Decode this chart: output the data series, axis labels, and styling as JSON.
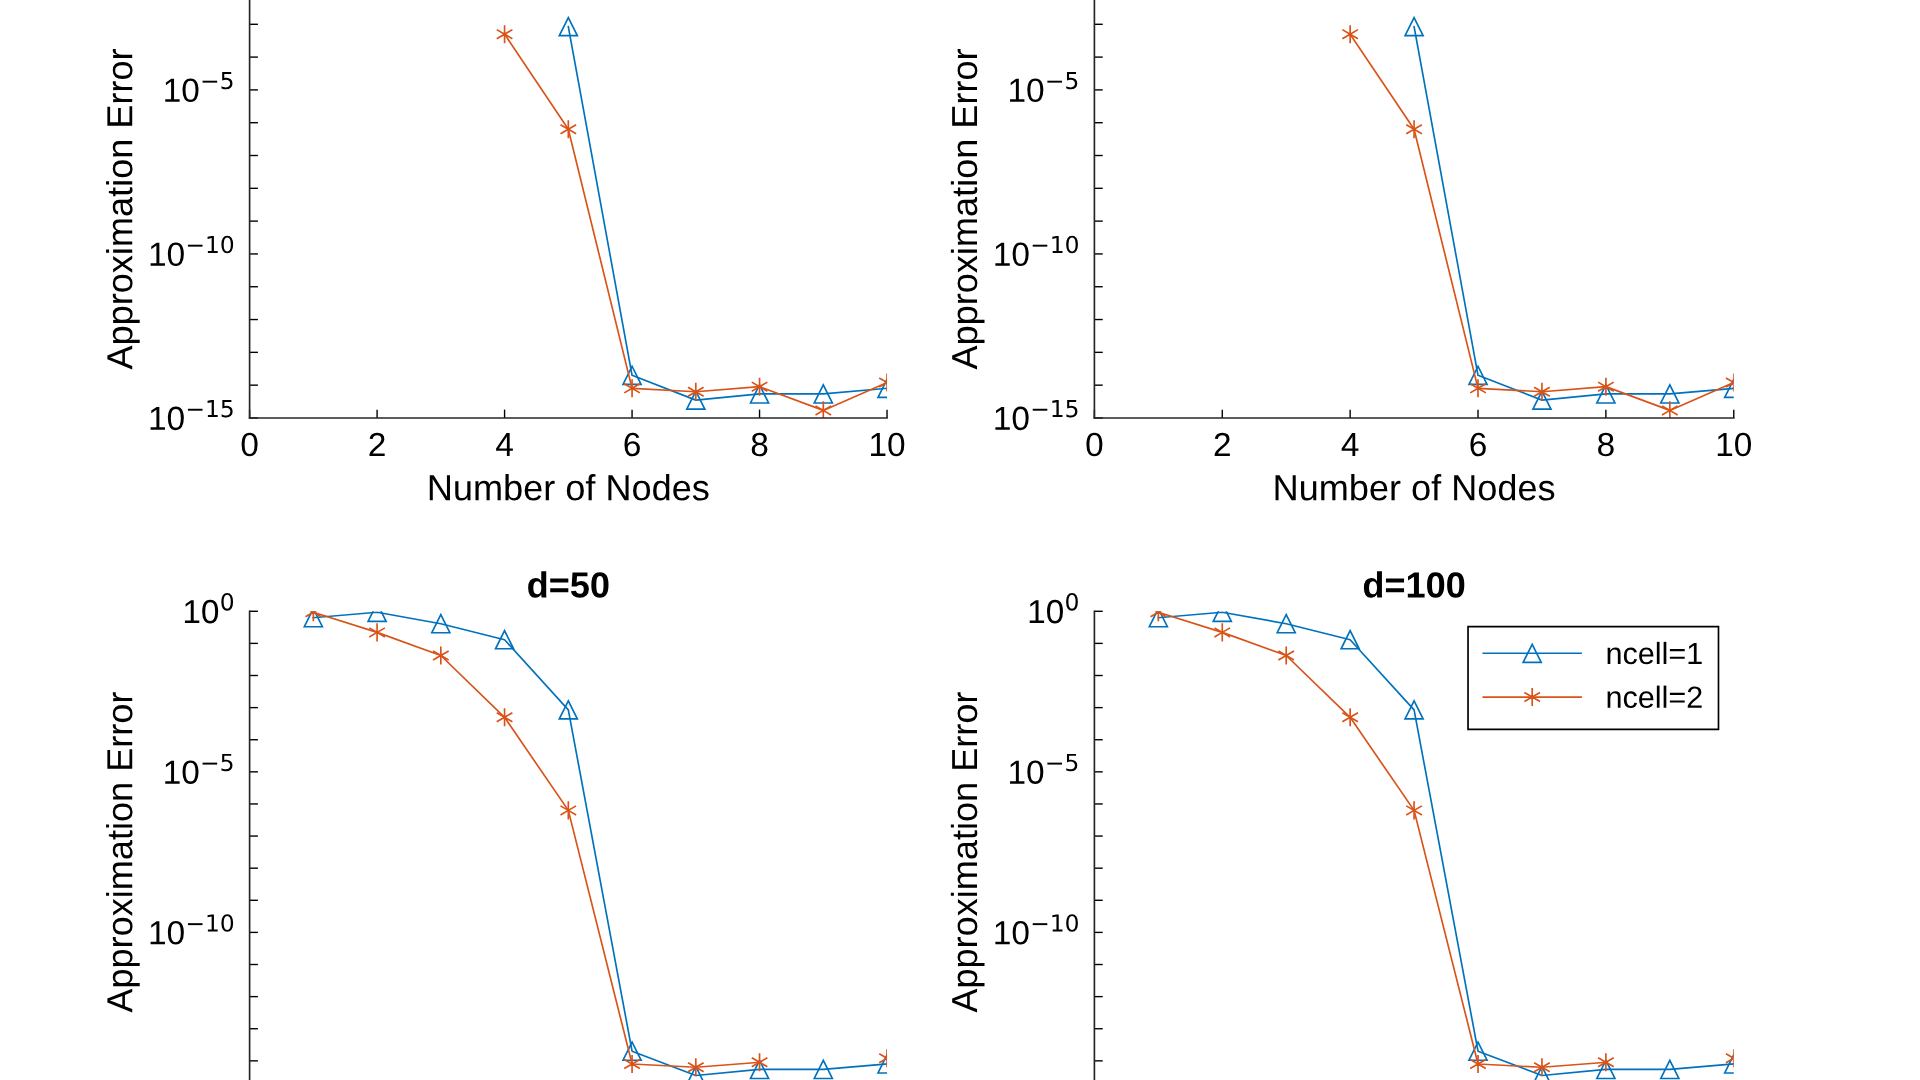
{
  "chart_data": [
    {
      "type": "line",
      "xlabel": "Number of Nodes",
      "ylabel": "Approximation Error",
      "log": "y",
      "grid": false,
      "legend": false,
      "xlim": [
        0,
        10
      ],
      "xticks": [
        0,
        2,
        4,
        6,
        8,
        10
      ],
      "ylim": [
        1e-15,
        0.0055
      ],
      "yticks": [
        {
          "value": 1e-15,
          "label": "10$^{−15}$"
        },
        {
          "value": 1e-14,
          "label": null
        },
        {
          "value": 1e-13,
          "label": null
        },
        {
          "value": 1e-12,
          "label": null
        },
        {
          "value": 1e-11,
          "label": null
        },
        {
          "value": 1e-10,
          "label": "10$^{−10}$"
        },
        {
          "value": 1e-09,
          "label": null
        },
        {
          "value": 1e-08,
          "label": null
        },
        {
          "value": 1e-07,
          "label": null
        },
        {
          "value": 1e-06,
          "label": null
        },
        {
          "value": 1e-05,
          "label": "10$^{−5}$"
        },
        {
          "value": 0.0001,
          "label": null
        },
        {
          "value": 0.001,
          "label": null
        }
      ],
      "series": [
        {
          "color": "#0072bd",
          "marker": "triangle",
          "x": [
            5,
            6,
            7,
            8,
            9,
            10
          ],
          "values": [
            0.00085,
            2e-14,
            3.5e-15,
            5.4e-15,
            5.4e-15,
            8e-15
          ]
        },
        {
          "color": "#d95319",
          "marker": "cross",
          "x": [
            4,
            5,
            6,
            7,
            8,
            9,
            10
          ],
          "values": [
            0.0005,
            6.3e-07,
            8e-15,
            6.3e-15,
            9e-15,
            1.7e-15,
            1.2e-14
          ]
        }
      ]
    },
    {
      "type": "line",
      "xlabel": "Number of Nodes",
      "ylabel": "Approximation Error",
      "log": "y",
      "grid": false,
      "legend": false,
      "xlim": [
        0,
        10
      ],
      "xticks": [
        0,
        2,
        4,
        6,
        8,
        10
      ],
      "ylim": [
        1e-15,
        0.0055
      ],
      "yticks": [
        {
          "value": 1e-15,
          "label": "10$^{−15}$"
        },
        {
          "value": 1e-14,
          "label": null
        },
        {
          "value": 1e-13,
          "label": null
        },
        {
          "value": 1e-12,
          "label": null
        },
        {
          "value": 1e-11,
          "label": null
        },
        {
          "value": 1e-10,
          "label": "10$^{−10}$"
        },
        {
          "value": 1e-09,
          "label": null
        },
        {
          "value": 1e-08,
          "label": null
        },
        {
          "value": 1e-07,
          "label": null
        },
        {
          "value": 1e-06,
          "label": null
        },
        {
          "value": 1e-05,
          "label": "10$^{−5}$"
        },
        {
          "value": 0.0001,
          "label": null
        },
        {
          "value": 0.001,
          "label": null
        }
      ],
      "series": [
        {
          "color": "#0072bd",
          "marker": "triangle",
          "x": [
            5,
            6,
            7,
            8,
            9,
            10
          ],
          "values": [
            0.00085,
            2e-14,
            3.5e-15,
            5.4e-15,
            5.4e-15,
            8e-15
          ]
        },
        {
          "color": "#d95319",
          "marker": "cross",
          "x": [
            4,
            5,
            6,
            7,
            8,
            9,
            10
          ],
          "values": [
            0.0005,
            6.3e-07,
            8e-15,
            6.3e-15,
            9e-15,
            1.7e-15,
            1.2e-14
          ]
        }
      ]
    },
    {
      "type": "line",
      "title": "d=50",
      "ylabel": "Approximation Error",
      "log": "y",
      "grid": false,
      "legend": false,
      "tick_labels": "y",
      "x": [
        1,
        2,
        3,
        4,
        5,
        6,
        7,
        8,
        9,
        10
      ],
      "xlim": [
        0,
        10
      ],
      "ylim": [
        1e-15,
        1
      ],
      "yticks": [
        {
          "value": 1e-14,
          "label": null
        },
        {
          "value": 1e-13,
          "label": null
        },
        {
          "value": 1e-12,
          "label": null
        },
        {
          "value": 1e-11,
          "label": null
        },
        {
          "value": 1e-10,
          "label": "10$^{−10}$"
        },
        {
          "value": 1e-09,
          "label": null
        },
        {
          "value": 1e-08,
          "label": null
        },
        {
          "value": 1e-07,
          "label": null
        },
        {
          "value": 1e-06,
          "label": null
        },
        {
          "value": 1e-05,
          "label": "10$^{−5}$"
        },
        {
          "value": 0.0001,
          "label": null
        },
        {
          "value": 0.001,
          "label": null
        },
        {
          "value": 0.01,
          "label": null
        },
        {
          "value": 0.1,
          "label": null
        },
        {
          "value": 1,
          "label": "10$^{0}$"
        }
      ],
      "series": [
        {
          "color": "#0072bd",
          "marker": "triangle",
          "values": [
            0.63,
            0.93,
            0.41,
            0.13,
            0.00085,
            2e-14,
            3.5e-15,
            5.4e-15,
            5.4e-15,
            8e-15
          ]
        },
        {
          "color": "#d95319",
          "marker": "cross",
          "values": [
            0.93,
            0.22,
            0.042,
            0.0005,
            6.3e-07,
            8e-15,
            6.3e-15,
            9e-15,
            null,
            1.2e-14
          ]
        }
      ]
    },
    {
      "type": "line",
      "title": "d=100",
      "ylabel": "Approximation Error",
      "log": "y",
      "grid": false,
      "legend": "top right",
      "tick_labels": "y",
      "x": [
        1,
        2,
        3,
        4,
        5,
        6,
        7,
        8,
        9,
        10
      ],
      "xlim": [
        0,
        10
      ],
      "ylim": [
        1e-15,
        1
      ],
      "yticks": [
        {
          "value": 1e-14,
          "label": null
        },
        {
          "value": 1e-13,
          "label": null
        },
        {
          "value": 1e-12,
          "label": null
        },
        {
          "value": 1e-11,
          "label": null
        },
        {
          "value": 1e-10,
          "label": "10$^{−10}$"
        },
        {
          "value": 1e-09,
          "label": null
        },
        {
          "value": 1e-08,
          "label": null
        },
        {
          "value": 1e-07,
          "label": null
        },
        {
          "value": 1e-06,
          "label": null
        },
        {
          "value": 1e-05,
          "label": "10$^{−5}$"
        },
        {
          "value": 0.0001,
          "label": null
        },
        {
          "value": 0.001,
          "label": null
        },
        {
          "value": 0.01,
          "label": null
        },
        {
          "value": 0.1,
          "label": null
        },
        {
          "value": 1,
          "label": "10$^{0}$"
        }
      ],
      "series": [
        {
          "name": "ncell=1",
          "color": "#0072bd",
          "marker": "triangle",
          "values": [
            0.63,
            0.93,
            0.41,
            0.13,
            0.00085,
            2e-14,
            3.5e-15,
            5.4e-15,
            5.4e-15,
            8e-15
          ]
        },
        {
          "name": "ncell=2",
          "color": "#d95319",
          "marker": "cross",
          "values": [
            0.93,
            0.22,
            0.042,
            0.0005,
            6.3e-07,
            8e-15,
            6.3e-15,
            9e-15,
            null,
            1.2e-14
          ]
        }
      ]
    }
  ]
}
